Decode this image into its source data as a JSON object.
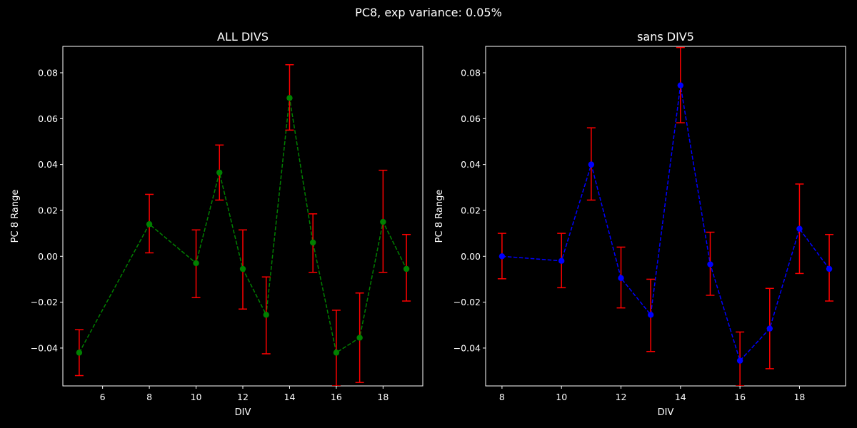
{
  "figure": {
    "suptitle": "PC8, exp variance: 0.05%",
    "background": "#000000",
    "foreground": "#ffffff"
  },
  "chart_data": [
    {
      "type": "line",
      "title": "ALL DIVS",
      "xlabel": "DIV",
      "ylabel": "PC 8 Range",
      "xlim": [
        4.3,
        19.7
      ],
      "ylim": [
        -0.0565,
        0.0915
      ],
      "xticks": [
        6,
        8,
        10,
        12,
        14,
        16,
        18
      ],
      "yticks": [
        -0.04,
        -0.02,
        0.0,
        0.02,
        0.04,
        0.06,
        0.08
      ],
      "ytick_labels": [
        "−0.04",
        "−0.02",
        "0.00",
        "0.02",
        "0.04",
        "0.06",
        "0.08"
      ],
      "grid": false,
      "line_style": "dashed",
      "line_color": "#008000",
      "marker": "circle",
      "errorbar_color": "#ff0000",
      "x": [
        5,
        8,
        10,
        11,
        12,
        13,
        14,
        15,
        16,
        17,
        18,
        19
      ],
      "y": [
        -0.042,
        0.014,
        -0.003,
        0.0365,
        -0.0055,
        -0.0255,
        0.069,
        0.006,
        -0.042,
        -0.0355,
        0.015,
        -0.0055
      ],
      "yerr_low": [
        -0.052,
        0.0015,
        -0.018,
        0.0245,
        -0.023,
        -0.0425,
        0.055,
        -0.007,
        -0.0565,
        -0.055,
        -0.007,
        -0.0195
      ],
      "yerr_high": [
        -0.032,
        0.027,
        0.0115,
        0.0485,
        0.0115,
        -0.009,
        0.0835,
        0.0185,
        -0.0235,
        -0.016,
        0.0375,
        0.0095
      ]
    },
    {
      "type": "line",
      "title": "sans DIV5",
      "xlabel": "DIV",
      "ylabel": "PC 8 Range",
      "xlim": [
        7.45,
        19.55
      ],
      "ylim": [
        -0.0565,
        0.0915
      ],
      "xticks": [
        8,
        10,
        12,
        14,
        16,
        18
      ],
      "yticks": [
        -0.04,
        -0.02,
        0.0,
        0.02,
        0.04,
        0.06,
        0.08
      ],
      "ytick_labels": [
        "−0.04",
        "−0.02",
        "0.00",
        "0.02",
        "0.04",
        "0.06",
        "0.08"
      ],
      "grid": false,
      "line_style": "dashed",
      "line_color": "#0000ff",
      "marker": "circle",
      "errorbar_color": "#ff0000",
      "x": [
        8,
        10,
        11,
        12,
        13,
        14,
        15,
        16,
        17,
        18,
        19
      ],
      "y": [
        0.0,
        -0.002,
        0.04,
        -0.0095,
        -0.0255,
        0.0745,
        -0.0035,
        -0.0455,
        -0.0315,
        0.012,
        -0.0055
      ],
      "yerr_low": [
        -0.0098,
        -0.0137,
        0.0245,
        -0.0225,
        -0.0415,
        0.0582,
        -0.017,
        -0.0565,
        -0.049,
        -0.0075,
        -0.0195
      ],
      "yerr_high": [
        0.01,
        0.01,
        0.056,
        0.004,
        -0.01,
        0.091,
        0.0105,
        -0.033,
        -0.014,
        0.0315,
        0.0095
      ]
    }
  ]
}
